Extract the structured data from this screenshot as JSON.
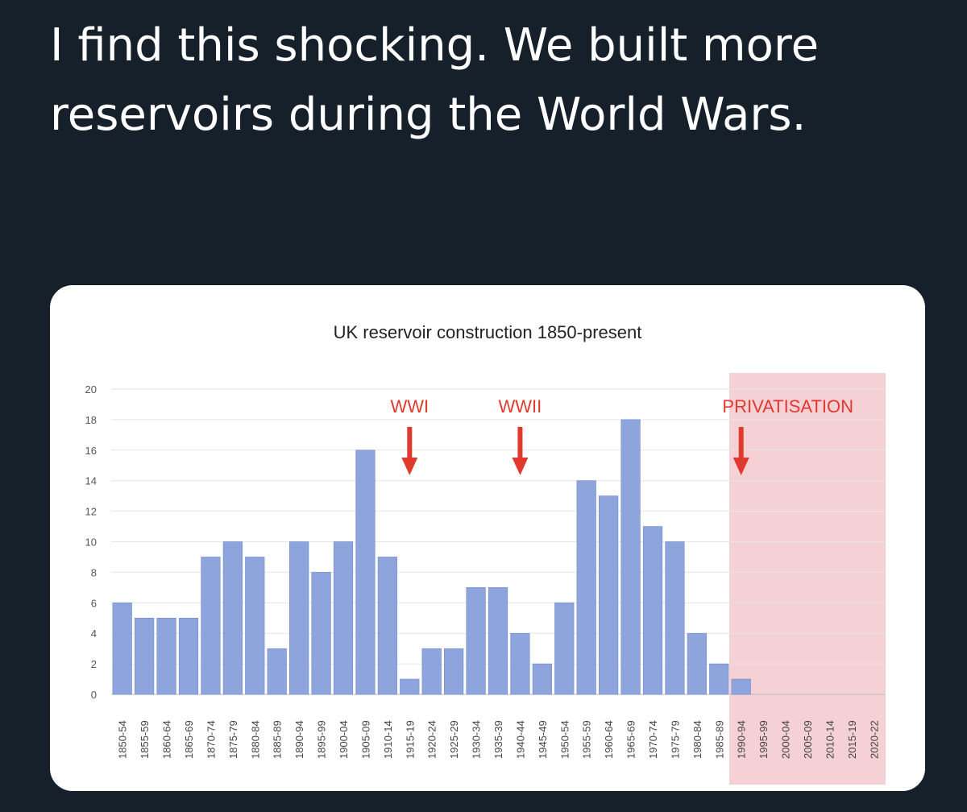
{
  "tweet": {
    "text": "I find this shocking. We built more reservoirs during the World Wars."
  },
  "colors": {
    "background": "#16202a",
    "bar": "#8ea4dc",
    "bar_stroke": "#7089c9",
    "shade": "#f3c9ce",
    "arrow": "#e03a2e",
    "annotation_text": "#e03a2e"
  },
  "chart_data": {
    "type": "bar",
    "title": "UK reservoir construction 1850-present",
    "xlabel": "",
    "ylabel": "",
    "ylim": [
      0,
      20
    ],
    "yticks": [
      0,
      2,
      4,
      6,
      8,
      10,
      12,
      14,
      16,
      18,
      20
    ],
    "grid": true,
    "categories": [
      "1850-54",
      "1855-59",
      "1860-64",
      "1865-69",
      "1870-74",
      "1875-79",
      "1880-84",
      "1885-89",
      "1890-94",
      "1895-99",
      "1900-04",
      "1905-09",
      "1910-14",
      "1915-19",
      "1920-24",
      "1925-29",
      "1930-34",
      "1935-39",
      "1940-44",
      "1945-49",
      "1950-54",
      "1955-59",
      "1960-64",
      "1965-69",
      "1970-74",
      "1975-79",
      "1980-84",
      "1985-89",
      "1990-94",
      "1995-99",
      "2000-04",
      "2005-09",
      "2010-14",
      "2015-19",
      "2020-22"
    ],
    "values": [
      6,
      5,
      5,
      5,
      9,
      10,
      9,
      3,
      10,
      8,
      10,
      16,
      9,
      1,
      3,
      3,
      7,
      7,
      4,
      2,
      6,
      14,
      13,
      18,
      11,
      10,
      4,
      2,
      1,
      0,
      0,
      0,
      0,
      0,
      0
    ],
    "shaded_region": {
      "from": "1990-94",
      "to": "2020-22"
    },
    "annotations": [
      {
        "label": "WWI",
        "category": "1915-19"
      },
      {
        "label": "WWII",
        "category": "1940-44"
      },
      {
        "label": "PRIVATISATION",
        "category": "1990-94"
      }
    ]
  }
}
